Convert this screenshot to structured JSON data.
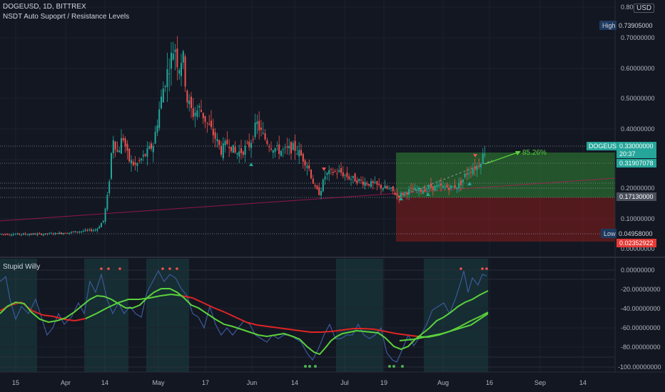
{
  "header": {
    "symbol": "DOGEUSD, 1D, BITTREX",
    "indicator": "NSDT Auto Supoprt / Resistance Levels",
    "currency": "USD",
    "lower_indicator": "Stupid Willy"
  },
  "price_axis": {
    "ticks": [
      "0.80000000",
      "0.70000000",
      "0.60000000",
      "0.50000000",
      "0.40000000",
      "0.20000000",
      "0.10000000",
      "0.00000000"
    ]
  },
  "price_labels": {
    "high_tag": "High",
    "high_value": "0.73905000",
    "symbol_tag": "DOGEUSD",
    "last_value": "0.33000000",
    "countdown": "20:37",
    "level_value": "0.31907078",
    "support_value": "0.17130000",
    "low_tag": "Low",
    "low_value": "0.04958000",
    "stop_value": "0.02352922"
  },
  "osc_axis": {
    "ticks": [
      "0.00000000",
      "-20.00000000",
      "-40.00000000",
      "-60.00000000",
      "-80.00000000",
      "-100.00000000"
    ]
  },
  "time_axis": {
    "labels": [
      "15",
      "Apr",
      "14",
      "May",
      "17",
      "Jun",
      "14",
      "Jul",
      "19",
      "Aug",
      "16",
      "Sep",
      "14"
    ]
  },
  "annotation": {
    "percent": "85.26%"
  },
  "colors": {
    "background": "#131722",
    "up": "#26a69a",
    "down": "#ef5350",
    "profit_zone": "#2e7d32",
    "loss_zone": "#7f1d1d",
    "osc_blue": "#3a5a9c",
    "osc_green": "#5bd13c",
    "osc_red": "#e02424"
  },
  "chart_data": {
    "type": "candlestick",
    "title": "DOGEUSD, 1D, BITTREX",
    "ylim": [
      0,
      0.8
    ],
    "x": [
      "15",
      "Apr",
      "14",
      "May",
      "17",
      "Jun",
      "14",
      "Jul",
      "19",
      "Aug",
      "16"
    ],
    "series": [
      {
        "name": "DOGEUSD",
        "close": [
          0.055,
          0.06,
          0.38,
          0.66,
          0.45,
          0.38,
          0.32,
          0.27,
          0.18,
          0.21,
          0.33
        ]
      }
    ],
    "high": 0.73905,
    "low": 0.04958,
    "last": 0.33,
    "change_percent": 85.26
  }
}
